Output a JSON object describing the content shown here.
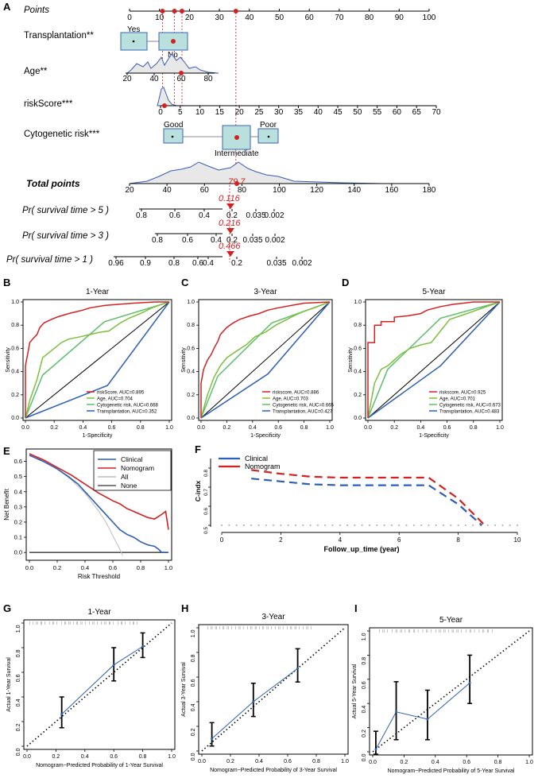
{
  "colors": {
    "red": "#d42020",
    "blue": "#2b5fb3",
    "green": "#7cbf3c",
    "lightgreen": "#5cbf6b",
    "box": "#b9e0dc",
    "boxstroke": "#3a66b8",
    "gray": "#bdbdbd",
    "black": "#000000"
  },
  "panels": {
    "A": {
      "label": "A",
      "rows": [
        {
          "key": "points",
          "label": "Points"
        },
        {
          "key": "transplant",
          "label": "Transplantation**"
        },
        {
          "key": "age",
          "label": "Age**"
        },
        {
          "key": "risk",
          "label": "riskScore***"
        },
        {
          "key": "cyto",
          "label": "Cytogenetic risk***"
        },
        {
          "key": "total",
          "label": "Total points"
        },
        {
          "key": "p5",
          "label": "Pr( survival time > 5 )"
        },
        {
          "key": "p3",
          "label": "Pr( survival time > 3 )"
        },
        {
          "key": "p1",
          "label": "Pr( survival time > 1 )"
        }
      ],
      "points_ticks": [
        0,
        10,
        20,
        30,
        40,
        50,
        60,
        70,
        80,
        90,
        100
      ],
      "points_markers": [
        11,
        15,
        17.5,
        35.5
      ],
      "transplant_categories": [
        "Yes",
        "No"
      ],
      "age_ticks": [
        20,
        40,
        60,
        80
      ],
      "age_point": 60,
      "risk_ticks": [
        0,
        5,
        10,
        15,
        20,
        25,
        30,
        35,
        40,
        45,
        50,
        55,
        60,
        65,
        70
      ],
      "risk_point": 1,
      "cyto_categories": [
        "Good",
        "Intermediate",
        "Poor"
      ],
      "total_ticks": [
        20,
        40,
        60,
        80,
        100,
        120,
        140,
        160,
        180
      ],
      "total_value": "79.7",
      "p5": {
        "ticks": [
          "0.8",
          "0.6",
          "0.4",
          "0.2",
          "0.035",
          "0.002"
        ],
        "value": "0.116"
      },
      "p3": {
        "ticks": [
          "0.8",
          "0.6",
          "0.4",
          "0.2",
          "0.035",
          "0.002"
        ],
        "value": "0.216"
      },
      "p1": {
        "ticks": [
          "0.96",
          "0.9",
          "0.8",
          "0.6",
          "0.4",
          "0.2",
          "0.035",
          "0.002"
        ],
        "value": "0.466"
      }
    },
    "roc": [
      {
        "label": "B",
        "title": "1-Year",
        "legend": [
          "riskScore, AUC=0.895",
          "Age, AUC=0.704",
          "Cytogenetic risk, AUC=0.668",
          "Transplantation, AUC=0.352"
        ]
      },
      {
        "label": "C",
        "title": "3-Year",
        "legend": [
          "riskscore, AUC=0.886",
          "Age, AUC=0.703",
          "Cytogenetic risk, AUC=0.665",
          "Transplantation, AUC=0.427"
        ]
      },
      {
        "label": "D",
        "title": "5-Year",
        "legend": [
          "riskscore, AUC=0.925",
          "Age, AUC=0.701",
          "Cytogenetic risk, AUC=0.673",
          "Transplantation, AUC=0.483"
        ]
      }
    ],
    "roc_axes": {
      "xlabel": "1-Specificity",
      "ylabel": "Sensitivity",
      "ticks": [
        "0.0",
        "0.2",
        "0.4",
        "0.6",
        "0.8",
        "1.0"
      ]
    },
    "dca": {
      "label": "E",
      "xlabel": "Risk Threshold",
      "ylabel": "Net Benefit",
      "xticks": [
        "0.0",
        "0.2",
        "0.4",
        "0.6",
        "0.8",
        "1.0"
      ],
      "yticks": [
        "0.0",
        "0.1",
        "0.2",
        "0.3",
        "0.4",
        "0.5",
        "0.6"
      ],
      "legend": [
        "Clinical",
        "Nomogram",
        "All",
        "None"
      ]
    },
    "cindex": {
      "label": "F",
      "xlabel": "Follow_up_time (year)",
      "ylabel": "C-indx",
      "xticks": [
        "0",
        "2",
        "4",
        "6",
        "8",
        "10"
      ],
      "yticks": [
        "0.5",
        "0.6",
        "0.7",
        "0.8"
      ],
      "legend": [
        "Clinical",
        "Nomogram"
      ]
    },
    "calib": [
      {
        "label": "G",
        "title": "1-Year",
        "xlabel": "Nomogram−Predicted Probability of 1-Year Survival",
        "ylabel": "Actual 1-Year Survival"
      },
      {
        "label": "H",
        "title": "3-Year",
        "xlabel": "Nomogram−Predicted Probability of 3-Year Survival",
        "ylabel": "Actual 3-Year Survival"
      },
      {
        "label": "I",
        "title": "5-Year",
        "xlabel": "Nomogram−Predicted Probability of 5-Year Survival",
        "ylabel": "Actual 5-Year Survival"
      }
    ],
    "calib_ticks": [
      "0.0",
      "0.2",
      "0.4",
      "0.6",
      "0.8",
      "1.0"
    ]
  },
  "chart_data": [
    {
      "type": "nomogram",
      "panel": "A",
      "total_points": 79.7,
      "predictions": {
        "5-year": 0.116,
        "3-year": 0.216,
        "1-year": 0.466
      }
    },
    {
      "type": "line",
      "panel": "B",
      "title": "1-Year",
      "xlabel": "1-Specificity",
      "ylabel": "Sensitivity",
      "xlim": [
        0,
        1
      ],
      "ylim": [
        0,
        1
      ],
      "series": [
        {
          "name": "riskScore, AUC=0.895",
          "color": "#d42020",
          "x": [
            0,
            0,
            0.02,
            0.03,
            0.05,
            0.08,
            0.1,
            0.13,
            0.18,
            0.22,
            0.3,
            0.4,
            0.45,
            0.55,
            0.65,
            0.75,
            0.9,
            1
          ],
          "y": [
            0,
            0.45,
            0.58,
            0.65,
            0.68,
            0.72,
            0.78,
            0.82,
            0.85,
            0.87,
            0.9,
            0.93,
            0.95,
            0.97,
            0.98,
            0.99,
            1,
            1
          ]
        },
        {
          "name": "Age, AUC=0.704",
          "color": "#7cbf3c",
          "x": [
            0,
            0.03,
            0.08,
            0.12,
            0.2,
            0.25,
            0.3,
            0.38,
            0.45,
            0.52,
            0.58,
            0.66,
            0.72,
            0.8,
            0.88,
            0.95,
            1
          ],
          "y": [
            0,
            0.15,
            0.33,
            0.52,
            0.6,
            0.65,
            0.68,
            0.7,
            0.72,
            0.74,
            0.75,
            0.82,
            0.86,
            0.9,
            0.95,
            0.98,
            1
          ]
        },
        {
          "name": "Cytogenetic risk, AUC=0.668",
          "color": "#5cbf6b",
          "x": [
            0,
            0.12,
            0.55,
            1
          ],
          "y": [
            0,
            0.37,
            0.83,
            1
          ]
        },
        {
          "name": "Transplantation, AUC=0.352",
          "color": "#2b5fb3",
          "x": [
            0,
            0.57,
            1
          ],
          "y": [
            0,
            0.28,
            1
          ]
        }
      ]
    },
    {
      "type": "line",
      "panel": "C",
      "title": "3-Year",
      "xlabel": "1-Specificity",
      "ylabel": "Sensitivity",
      "xlim": [
        0,
        1
      ],
      "ylim": [
        0,
        1
      ],
      "series": [
        {
          "name": "riskscore, AUC=0.886",
          "color": "#d42020",
          "x": [
            0,
            0,
            0.02,
            0.05,
            0.08,
            0.1,
            0.13,
            0.15,
            0.2,
            0.25,
            0.3,
            0.38,
            0.45,
            0.52,
            0.6,
            0.7,
            0.8,
            1
          ],
          "y": [
            0,
            0.3,
            0.42,
            0.5,
            0.55,
            0.6,
            0.66,
            0.72,
            0.78,
            0.82,
            0.85,
            0.88,
            0.9,
            0.93,
            0.95,
            0.97,
            0.99,
            1
          ]
        },
        {
          "name": "Age, AUC=0.703",
          "color": "#7cbf3c",
          "x": [
            0,
            0.05,
            0.1,
            0.15,
            0.2,
            0.28,
            0.35,
            0.42,
            0.5,
            0.58,
            0.65,
            0.72,
            0.8,
            0.88,
            0.95,
            1
          ],
          "y": [
            0,
            0.2,
            0.35,
            0.45,
            0.52,
            0.58,
            0.63,
            0.7,
            0.74,
            0.8,
            0.84,
            0.88,
            0.92,
            0.95,
            0.98,
            1
          ]
        },
        {
          "name": "Cytogenetic risk, AUC=0.665",
          "color": "#5cbf6b",
          "x": [
            0,
            0.13,
            0.55,
            1
          ],
          "y": [
            0,
            0.36,
            0.82,
            1
          ]
        },
        {
          "name": "Transplantation, AUC=0.427",
          "color": "#2b5fb3",
          "x": [
            0,
            0.52,
            1
          ],
          "y": [
            0,
            0.38,
            1
          ]
        }
      ]
    },
    {
      "type": "line",
      "panel": "D",
      "title": "5-Year",
      "xlabel": "1-Specificity",
      "ylabel": "Sensitivity",
      "xlim": [
        0,
        1
      ],
      "ylim": [
        0,
        1
      ],
      "series": [
        {
          "name": "riskscore, AUC=0.925",
          "color": "#d42020",
          "x": [
            0,
            0,
            0.05,
            0.05,
            0.1,
            0.1,
            0.2,
            0.2,
            0.3,
            0.4,
            0.45,
            0.55,
            0.65,
            0.8,
            1
          ],
          "y": [
            0,
            0.65,
            0.65,
            0.8,
            0.8,
            0.83,
            0.83,
            0.87,
            0.88,
            0.9,
            0.93,
            0.96,
            0.98,
            1,
            1
          ]
        },
        {
          "name": "Age, AUC=0.701",
          "color": "#7cbf3c",
          "x": [
            0,
            0.05,
            0.1,
            0.15,
            0.2,
            0.25,
            0.32,
            0.4,
            0.48,
            0.55,
            0.62,
            0.7,
            0.8,
            0.9,
            1
          ],
          "y": [
            0,
            0.3,
            0.42,
            0.45,
            0.5,
            0.55,
            0.6,
            0.63,
            0.65,
            0.75,
            0.85,
            0.88,
            0.92,
            0.96,
            1
          ]
        },
        {
          "name": "Cytogenetic risk, AUC=0.673",
          "color": "#5cbf6b",
          "x": [
            0,
            0.15,
            0.55,
            1
          ],
          "y": [
            0,
            0.42,
            0.86,
            1
          ]
        },
        {
          "name": "Transplantation, AUC=0.483",
          "color": "#2b5fb3",
          "x": [
            0,
            0.55,
            1
          ],
          "y": [
            0,
            0.45,
            1
          ]
        }
      ]
    },
    {
      "type": "line",
      "panel": "E",
      "xlabel": "Risk Threshold",
      "ylabel": "Net Benefit",
      "xlim": [
        0,
        1
      ],
      "ylim": [
        -0.02,
        0.65
      ],
      "series": [
        {
          "name": "Clinical",
          "color": "#2b5fb3",
          "x": [
            0,
            0.1,
            0.2,
            0.28,
            0.35,
            0.42,
            0.5,
            0.55,
            0.6,
            0.65,
            0.7,
            0.75,
            0.8,
            0.85,
            0.9,
            0.93,
            0.95,
            1
          ],
          "y": [
            0.64,
            0.6,
            0.55,
            0.5,
            0.45,
            0.38,
            0.3,
            0.25,
            0.2,
            0.15,
            0.12,
            0.1,
            0.07,
            0.05,
            0.04,
            0.02,
            0.0,
            0.0
          ]
        },
        {
          "name": "Nomogram",
          "color": "#d42020",
          "x": [
            0,
            0.1,
            0.2,
            0.3,
            0.4,
            0.5,
            0.6,
            0.65,
            0.7,
            0.75,
            0.8,
            0.85,
            0.9,
            0.95,
            0.98,
            1
          ],
          "y": [
            0.65,
            0.61,
            0.56,
            0.51,
            0.45,
            0.39,
            0.34,
            0.32,
            0.29,
            0.27,
            0.25,
            0.23,
            0.22,
            0.25,
            0.27,
            0.15
          ]
        },
        {
          "name": "All",
          "color": "#bdbdbd",
          "x": [
            0,
            0.1,
            0.2,
            0.3,
            0.4,
            0.5,
            0.55,
            0.6,
            0.64,
            0.67
          ],
          "y": [
            0.64,
            0.6,
            0.55,
            0.48,
            0.39,
            0.27,
            0.2,
            0.11,
            0.04,
            -0.02
          ]
        },
        {
          "name": "None",
          "color": "#555555",
          "x": [
            0,
            1
          ],
          "y": [
            0,
            0
          ]
        }
      ]
    },
    {
      "type": "line",
      "panel": "F",
      "xlabel": "Follow_up_time (year)",
      "ylabel": "C-indx",
      "xlim": [
        0,
        10
      ],
      "ylim": [
        0.5,
        0.85
      ],
      "series": [
        {
          "name": "Clinical",
          "color": "#2b5fb3",
          "x": [
            1,
            2,
            3,
            4,
            5,
            6,
            7,
            8,
            8.8
          ],
          "y": [
            0.745,
            0.73,
            0.715,
            0.71,
            0.71,
            0.71,
            0.71,
            0.61,
            0.5
          ]
        },
        {
          "name": "Nomogram",
          "color": "#d42020",
          "x": [
            1,
            2,
            3,
            4,
            5,
            6,
            7,
            8,
            8.9
          ],
          "y": [
            0.79,
            0.77,
            0.755,
            0.75,
            0.75,
            0.75,
            0.75,
            0.64,
            0.5
          ]
        }
      ]
    },
    {
      "type": "scatter",
      "panel": "G",
      "title": "1-Year",
      "xlim": [
        0,
        1
      ],
      "ylim": [
        0,
        1
      ],
      "points": [
        {
          "x": 0.24,
          "y": 0.26,
          "lo": 0.15,
          "hi": 0.4
        },
        {
          "x": 0.6,
          "y": 0.66,
          "lo": 0.53,
          "hi": 0.8
        },
        {
          "x": 0.8,
          "y": 0.81,
          "lo": 0.72,
          "hi": 0.92
        }
      ]
    },
    {
      "type": "scatter",
      "panel": "H",
      "title": "3-Year",
      "xlim": [
        0,
        1
      ],
      "ylim": [
        0,
        1
      ],
      "points": [
        {
          "x": 0.07,
          "y": 0.1,
          "lo": 0.04,
          "hi": 0.23
        },
        {
          "x": 0.36,
          "y": 0.4,
          "lo": 0.28,
          "hi": 0.55
        },
        {
          "x": 0.67,
          "y": 0.67,
          "lo": 0.56,
          "hi": 0.83
        }
      ]
    },
    {
      "type": "scatter",
      "panel": "I",
      "title": "5-Year",
      "xlim": [
        0,
        1
      ],
      "ylim": [
        0,
        1
      ],
      "points": [
        {
          "x": 0.02,
          "y": 0.02,
          "lo": -0.02,
          "hi": 0.17
        },
        {
          "x": 0.15,
          "y": 0.33,
          "lo": 0.1,
          "hi": 0.58
        },
        {
          "x": 0.35,
          "y": 0.27,
          "lo": 0.1,
          "hi": 0.51
        },
        {
          "x": 0.62,
          "y": 0.57,
          "lo": 0.4,
          "hi": 0.8
        }
      ]
    }
  ]
}
